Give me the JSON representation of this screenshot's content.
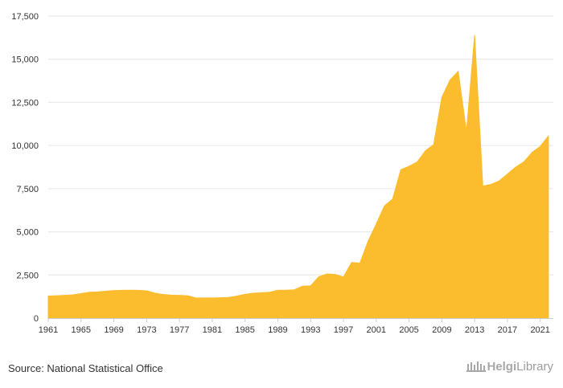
{
  "chart_data": {
    "type": "area",
    "title": "",
    "xlabel": "",
    "ylabel": "",
    "xlim": [
      1961,
      2022
    ],
    "ylim": [
      0,
      17500
    ],
    "x": [
      1961,
      1962,
      1963,
      1964,
      1965,
      1966,
      1967,
      1968,
      1969,
      1970,
      1971,
      1972,
      1973,
      1974,
      1975,
      1976,
      1977,
      1978,
      1979,
      1980,
      1981,
      1982,
      1983,
      1984,
      1985,
      1986,
      1987,
      1988,
      1989,
      1990,
      1991,
      1992,
      1993,
      1994,
      1995,
      1996,
      1997,
      1998,
      1999,
      2000,
      2001,
      2002,
      2003,
      2004,
      2005,
      2006,
      2007,
      2008,
      2009,
      2010,
      2011,
      2012,
      2013,
      2014,
      2015,
      2016,
      2017,
      2018,
      2019,
      2020,
      2021,
      2022
    ],
    "series": [
      {
        "values": [
          1280,
          1300,
          1320,
          1350,
          1420,
          1500,
          1520,
          1560,
          1600,
          1610,
          1620,
          1610,
          1580,
          1450,
          1370,
          1330,
          1320,
          1300,
          1170,
          1170,
          1170,
          1180,
          1200,
          1280,
          1380,
          1440,
          1470,
          1500,
          1620,
          1620,
          1640,
          1850,
          1870,
          2400,
          2560,
          2530,
          2380,
          3230,
          3180,
          4450,
          5450,
          6500,
          6900,
          8600,
          8800,
          9050,
          9700,
          10050,
          12800,
          13800,
          14300,
          10800,
          16400,
          7650,
          7750,
          7950,
          8350,
          8750,
          9050,
          9600,
          9950,
          10550
        ]
      }
    ],
    "yticks": [
      "0",
      "2,500",
      "5,000",
      "7,500",
      "10,000",
      "12,500",
      "15,000",
      "17,500"
    ],
    "ytick_values": [
      0,
      2500,
      5000,
      7500,
      10000,
      12500,
      15000,
      17500
    ],
    "xticks": [
      "1961",
      "1965",
      "1969",
      "1973",
      "1977",
      "1981",
      "1985",
      "1989",
      "1993",
      "1997",
      "2001",
      "2005",
      "2009",
      "2013",
      "2017",
      "2021"
    ],
    "xtick_values": [
      1961,
      1965,
      1969,
      1973,
      1977,
      1981,
      1985,
      1989,
      1993,
      1997,
      2001,
      2005,
      2009,
      2013,
      2017,
      2021
    ],
    "grid": true,
    "legend": "none",
    "colors": {
      "fill": "#fbbd2e",
      "grid": "#e6e6e6",
      "axis": "#cccccc",
      "text": "#333333"
    }
  },
  "footer": {
    "source": "Source: National Statistical Office",
    "logo_bold": "Helgi",
    "logo_rest": "Library",
    "logo_icon": "library-icon"
  }
}
